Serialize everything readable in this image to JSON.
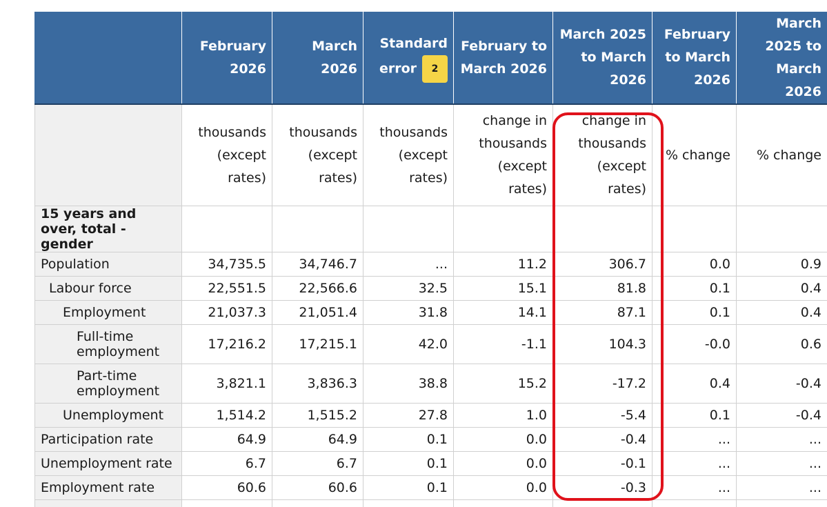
{
  "columns": [
    "",
    "February 2026",
    "March 2026",
    "Standard error",
    "February to March 2026",
    "March 2025 to March 2026",
    "February to March 2026",
    "March 2025 to March 2026"
  ],
  "se_badge": "2",
  "units": [
    "",
    "thousands (except rates)",
    "thousands (except rates)",
    "thousands (except rates)",
    "change in thousands (except rates)",
    "change in thousands (except rates)",
    "% change",
    "% change"
  ],
  "section_label": "15 years and over, total - gender",
  "rows": [
    {
      "label": "Population",
      "values": [
        "34,735.5",
        "34,746.7",
        "...",
        "11.2",
        "306.7",
        "0.0",
        "0.9"
      ]
    },
    {
      "label": "Labour force",
      "values": [
        "22,551.5",
        "22,566.6",
        "32.5",
        "15.1",
        "81.8",
        "0.1",
        "0.4"
      ]
    },
    {
      "label": "Employment",
      "values": [
        "21,037.3",
        "21,051.4",
        "31.8",
        "14.1",
        "87.1",
        "0.1",
        "0.4"
      ]
    },
    {
      "label": "Full-time employment",
      "values": [
        "17,216.2",
        "17,215.1",
        "42.0",
        "-1.1",
        "104.3",
        "-0.0",
        "0.6"
      ]
    },
    {
      "label": "Part-time employment",
      "values": [
        "3,821.1",
        "3,836.3",
        "38.8",
        "15.2",
        "-17.2",
        "0.4",
        "-0.4"
      ]
    },
    {
      "label": "Unemployment",
      "values": [
        "1,514.2",
        "1,515.2",
        "27.8",
        "1.0",
        "-5.4",
        "0.1",
        "-0.4"
      ]
    },
    {
      "label": "Participation rate",
      "values": [
        "64.9",
        "64.9",
        "0.1",
        "0.0",
        "-0.4",
        "...",
        "..."
      ]
    },
    {
      "label": "Unemployment rate",
      "values": [
        "6.7",
        "6.7",
        "0.1",
        "0.0",
        "-0.1",
        "...",
        "..."
      ]
    },
    {
      "label": "Employment rate",
      "values": [
        "60.6",
        "60.6",
        "0.1",
        "0.0",
        "-0.3",
        "...",
        "..."
      ]
    }
  ],
  "highlight_color": "#e0121b",
  "header_color": "#3a6a9f",
  "chart_data": {
    "type": "table",
    "columns": [
      "February 2026",
      "March 2026",
      "Standard error",
      "February to March 2026",
      "March 2025 to March 2026",
      "February to March 2026",
      "March 2025 to March 2026"
    ],
    "rows": [
      "Population",
      "Labour force",
      "Employment",
      "Full-time employment",
      "Part-time employment",
      "Unemployment",
      "Participation rate",
      "Unemployment rate",
      "Employment rate"
    ]
  }
}
